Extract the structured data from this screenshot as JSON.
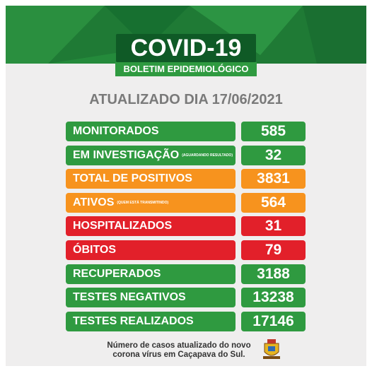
{
  "header": {
    "title": "COVID-19",
    "subtitle": "BOLETIM EPIDEMIOLÓGICO"
  },
  "updated": "ATUALIZADO DIA 17/06/2021",
  "rows": [
    {
      "label": "MONITORADOS",
      "value": 585,
      "color": "#2f9a40"
    },
    {
      "label": "EM INVESTIGAÇÃO",
      "note": "(AGUARDANDO RESULTADO)",
      "value": 32,
      "color": "#2f9a40"
    },
    {
      "label": "TOTAL DE POSITIVOS",
      "value": 3831,
      "color": "#f7931e"
    },
    {
      "label": "ATIVOS",
      "note": "(QUEM ESTÁ TRANSMITINDO)",
      "value": 564,
      "color": "#f7931e"
    },
    {
      "label": "HOSPITALIZADOS",
      "value": 31,
      "color": "#e2202a"
    },
    {
      "label": "ÓBITOS",
      "value": 79,
      "color": "#e2202a"
    },
    {
      "label": "RECUPERADOS",
      "value": 3188,
      "color": "#2f9a40"
    },
    {
      "label": "TESTES NEGATIVOS",
      "value": 13238,
      "color": "#2f9a40"
    },
    {
      "label": "TESTES REALIZADOS",
      "value": 17146,
      "color": "#2f9a40"
    }
  ],
  "footer": {
    "lines": [
      "Número de casos atualizado do novo",
      "corona vírus em Caçapava do Sul."
    ]
  }
}
